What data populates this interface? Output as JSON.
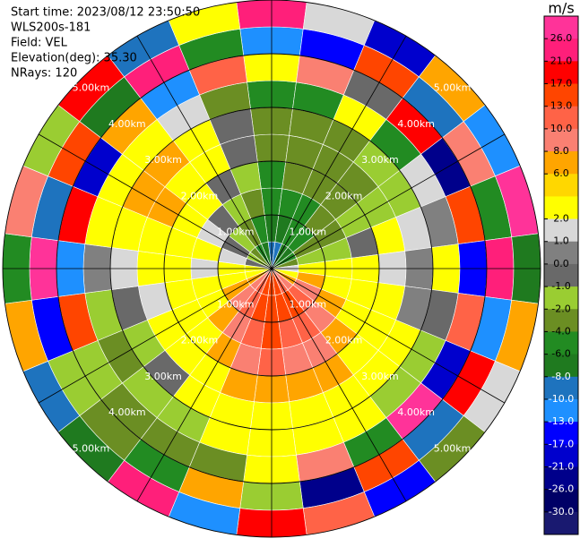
{
  "chart_data": {
    "type": "ppi",
    "header": [
      "Start time: 2023/08/12 23:50:50",
      "WLS200s-181",
      "Field: VEL",
      "Elevation(deg): 35.30",
      "NRays: 120"
    ],
    "azimuths": [
      0,
      15,
      30,
      45,
      60,
      75,
      90,
      105,
      120,
      135,
      150,
      165,
      180,
      195,
      210,
      225,
      240,
      255,
      270,
      285,
      300,
      315,
      330,
      345
    ],
    "gate_edges": [
      0,
      0.5,
      1,
      1.5,
      2,
      2.5,
      3,
      3.5,
      4,
      4.5,
      5
    ],
    "range_rings": [
      {
        "value": 1,
        "label": "1.00km"
      },
      {
        "value": 2,
        "label": "2.00km"
      },
      {
        "value": 3,
        "label": "3.00km"
      },
      {
        "value": 4,
        "label": "4.00km"
      },
      {
        "value": 5,
        "label": "5.00km"
      }
    ],
    "values": [
      [
        -10,
        -8,
        -6,
        -6,
        -4,
        -4,
        -6,
        2,
        -13,
        21
      ],
      [
        -10,
        -8,
        -6,
        -4,
        -4,
        -4,
        -6,
        8,
        -17,
        1
      ],
      [
        -8,
        -6,
        -6,
        -4,
        -4,
        -4,
        2,
        -1,
        13,
        -21
      ],
      [
        -8,
        -6,
        -4,
        -4,
        -4,
        -2,
        -6,
        17,
        -10,
        6
      ],
      [
        -6,
        -4,
        -4,
        -2,
        -2,
        -2,
        1,
        -26,
        8,
        -13
      ],
      [
        -4,
        -2,
        -2,
        -1,
        2,
        1,
        0,
        13,
        -6,
        26
      ],
      [
        1,
        2,
        2,
        2,
        1,
        0,
        2,
        -17,
        21,
        -8
      ],
      [
        2,
        6,
        4,
        2,
        2,
        0,
        -1,
        10,
        -13,
        6
      ],
      [
        6,
        8,
        6,
        4,
        2,
        2,
        -2,
        -21,
        17,
        1
      ],
      [
        8,
        10,
        8,
        6,
        4,
        2,
        -2,
        26,
        -10,
        -4
      ],
      [
        10,
        13,
        10,
        8,
        6,
        4,
        2,
        -6,
        13,
        -17
      ],
      [
        13,
        13,
        10,
        8,
        6,
        4,
        2,
        8,
        -26,
        10
      ],
      [
        13,
        13,
        13,
        10,
        6,
        4,
        4,
        2,
        -2,
        17
      ],
      [
        13,
        13,
        10,
        8,
        6,
        4,
        2,
        -4,
        6,
        -13
      ],
      [
        10,
        10,
        8,
        6,
        4,
        2,
        -2,
        -4,
        -6,
        21
      ],
      [
        8,
        8,
        6,
        4,
        2,
        -1,
        -2,
        -4,
        -4,
        -8
      ],
      [
        6,
        6,
        4,
        2,
        2,
        -2,
        -4,
        -2,
        -2,
        -10
      ],
      [
        4,
        4,
        2,
        2,
        1,
        -1,
        -2,
        13,
        -17,
        6
      ],
      [
        2,
        2,
        1,
        2,
        2,
        1,
        0,
        -13,
        26,
        -6
      ],
      [
        -1,
        1,
        2,
        2,
        4,
        4,
        2,
        17,
        -10,
        8
      ],
      [
        -2,
        -1,
        1,
        2,
        6,
        6,
        2,
        -21,
        13,
        -2
      ],
      [
        -4,
        -2,
        -1,
        2,
        4,
        6,
        2,
        6,
        -8,
        17
      ],
      [
        -6,
        -4,
        -2,
        -1,
        2,
        4,
        1,
        -13,
        21,
        -10
      ],
      [
        -8,
        -6,
        -4,
        -2,
        -1,
        -1,
        -4,
        10,
        -6,
        2
      ]
    ],
    "colorbar": {
      "label": "m/s",
      "ticks": [
        {
          "value": 26,
          "label": "26.0"
        },
        {
          "value": 21,
          "label": "21.0"
        },
        {
          "value": 17,
          "label": "17.0"
        },
        {
          "value": 13,
          "label": "13.0"
        },
        {
          "value": 10,
          "label": "10.0"
        },
        {
          "value": 8,
          "label": "8.0"
        },
        {
          "value": 6,
          "label": "6.0"
        },
        null,
        {
          "value": 2,
          "label": "2.0"
        },
        {
          "value": 1,
          "label": "1.0"
        },
        {
          "value": 0,
          "label": "0.0"
        },
        {
          "value": -1,
          "label": "-1.0"
        },
        {
          "value": -2,
          "label": "-2.0"
        },
        {
          "value": -4,
          "label": "-4.0"
        },
        {
          "value": -6,
          "label": "-6.0"
        },
        {
          "value": -8,
          "label": "-8.0"
        },
        {
          "value": -10,
          "label": "-10.0"
        },
        {
          "value": -13,
          "label": "-13.0"
        },
        {
          "value": -17,
          "label": "-17.0"
        },
        {
          "value": -21,
          "label": "-21.0"
        },
        {
          "value": -26,
          "label": "-26.0"
        },
        {
          "value": -30,
          "label": "-30.0"
        }
      ],
      "colors": [
        "#ff3399",
        "#ff1f7a",
        "#ff0000",
        "#ff4500",
        "#ff6347",
        "#fa8072",
        "#ffa500",
        "#ffd700",
        "#ffff00",
        "#d8d8d8",
        "#808080",
        "#696969",
        "#9acd32",
        "#6b8e23",
        "#228b22",
        "#1f7a1f",
        "#1e73be",
        "#1e90ff",
        "#0000ff",
        "#0000cd",
        "#00008b",
        "#000066",
        "#191970"
      ]
    }
  }
}
